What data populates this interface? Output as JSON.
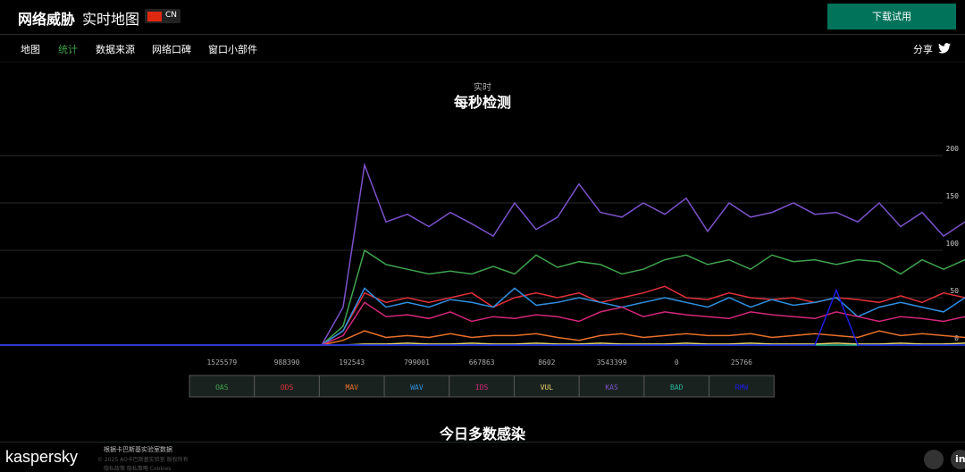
{
  "header": {
    "title": "网络威胁",
    "subtitle": "实时地图",
    "country": "CN",
    "button": "下载试用"
  },
  "nav": {
    "items": [
      "地图",
      "统计",
      "数据来源",
      "网络口碑",
      "窗口小部件"
    ],
    "share": "分享"
  },
  "chart_data": {
    "type": "line",
    "subtitle": "实时",
    "title": "每秒检测",
    "ylim": [
      0,
      200
    ],
    "yticks": [
      0,
      50,
      100,
      150,
      200
    ],
    "grid": true,
    "series": [
      {
        "name": "OAS",
        "color": "#3fa34d",
        "total": 1525579,
        "values": [
          0,
          0,
          0,
          0,
          0,
          0,
          0,
          0,
          0,
          0,
          0,
          0,
          0,
          0,
          0,
          0,
          20,
          100,
          85,
          80,
          75,
          78,
          75,
          83,
          75,
          95,
          82,
          88,
          85,
          75,
          80,
          90,
          95,
          85,
          90,
          80,
          95,
          88,
          90,
          85,
          90,
          88,
          75,
          90,
          80,
          90
        ]
      },
      {
        "name": "ODS",
        "color": "#e0303a",
        "total": 988390,
        "values": [
          0,
          0,
          0,
          0,
          0,
          0,
          0,
          0,
          0,
          0,
          0,
          0,
          0,
          0,
          0,
          0,
          15,
          55,
          45,
          50,
          45,
          50,
          55,
          40,
          50,
          55,
          50,
          55,
          45,
          50,
          55,
          62,
          50,
          48,
          55,
          50,
          48,
          50,
          45,
          50,
          48,
          45,
          52,
          45,
          55,
          50
        ]
      },
      {
        "name": "MAV",
        "color": "#e8702a",
        "total": 192543,
        "values": [
          0,
          0,
          0,
          0,
          0,
          0,
          0,
          0,
          0,
          0,
          0,
          0,
          0,
          0,
          0,
          0,
          5,
          15,
          8,
          10,
          8,
          12,
          8,
          10,
          10,
          12,
          8,
          5,
          10,
          12,
          8,
          10,
          12,
          10,
          10,
          12,
          8,
          10,
          12,
          10,
          8,
          15,
          10,
          12,
          10,
          8
        ]
      },
      {
        "name": "WAV",
        "color": "#2f8fe0",
        "total": 799001,
        "values": [
          0,
          0,
          0,
          0,
          0,
          0,
          0,
          0,
          0,
          0,
          0,
          0,
          0,
          0,
          0,
          0,
          15,
          60,
          40,
          45,
          40,
          48,
          45,
          40,
          60,
          42,
          45,
          50,
          45,
          40,
          45,
          50,
          45,
          40,
          50,
          40,
          48,
          42,
          45,
          50,
          30,
          40,
          45,
          40,
          35,
          50
        ]
      },
      {
        "name": "IDS",
        "color": "#d4277a",
        "total": 667863,
        "values": [
          0,
          0,
          0,
          0,
          0,
          0,
          0,
          0,
          0,
          0,
          0,
          0,
          0,
          0,
          0,
          0,
          10,
          45,
          30,
          32,
          28,
          35,
          25,
          30,
          28,
          32,
          30,
          25,
          35,
          40,
          30,
          35,
          32,
          30,
          28,
          35,
          32,
          30,
          28,
          35,
          30,
          25,
          30,
          28,
          25,
          30
        ]
      },
      {
        "name": "VUL",
        "color": "#e8d46a",
        "total": 8602,
        "values": [
          0,
          0,
          0,
          0,
          0,
          0,
          0,
          0,
          0,
          0,
          0,
          0,
          0,
          0,
          0,
          0,
          0,
          1,
          1,
          2,
          1,
          1,
          2,
          1,
          1,
          2,
          1,
          1,
          2,
          1,
          1,
          1,
          2,
          1,
          1,
          2,
          1,
          1,
          1,
          2,
          1,
          1,
          2,
          1,
          1,
          2
        ]
      },
      {
        "name": "KAS",
        "color": "#7b52c9",
        "total": 3543399,
        "values": [
          0,
          0,
          0,
          0,
          0,
          0,
          0,
          0,
          0,
          0,
          0,
          0,
          0,
          0,
          0,
          0,
          40,
          190,
          130,
          138,
          125,
          140,
          128,
          115,
          150,
          122,
          135,
          170,
          140,
          135,
          150,
          138,
          155,
          120,
          150,
          135,
          140,
          150,
          138,
          140,
          130,
          150,
          125,
          140,
          115,
          130
        ]
      },
      {
        "name": "BAD",
        "color": "#28b39a",
        "total": 0,
        "values": [
          0,
          0,
          0,
          0,
          0,
          0,
          0,
          0,
          0,
          0,
          0,
          0,
          0,
          0,
          0,
          0,
          0,
          0,
          0,
          0,
          0,
          0,
          0,
          0,
          0,
          0,
          0,
          0,
          0,
          0,
          0,
          0,
          0,
          0,
          0,
          0,
          0,
          0,
          0,
          0,
          0,
          0,
          0,
          0,
          0,
          0
        ]
      },
      {
        "name": "RMW",
        "color": "#1c1ce0",
        "total": 25766,
        "values": [
          0,
          0,
          0,
          0,
          0,
          0,
          0,
          0,
          0,
          0,
          0,
          0,
          0,
          0,
          0,
          0,
          0,
          0,
          0,
          0,
          0,
          0,
          0,
          0,
          0,
          0,
          0,
          0,
          0,
          0,
          0,
          0,
          0,
          0,
          0,
          0,
          0,
          0,
          0,
          58,
          0,
          0,
          0,
          0,
          0,
          0
        ]
      }
    ]
  },
  "section_title": "今日多数感染",
  "footer": {
    "logo": "kaspersky",
    "source": "根据卡巴斯基实验室数据",
    "copyright": "© 2025 AO卡巴斯基实验室 版权所有",
    "links": "隐私政策 隐私策略 Cookies"
  }
}
